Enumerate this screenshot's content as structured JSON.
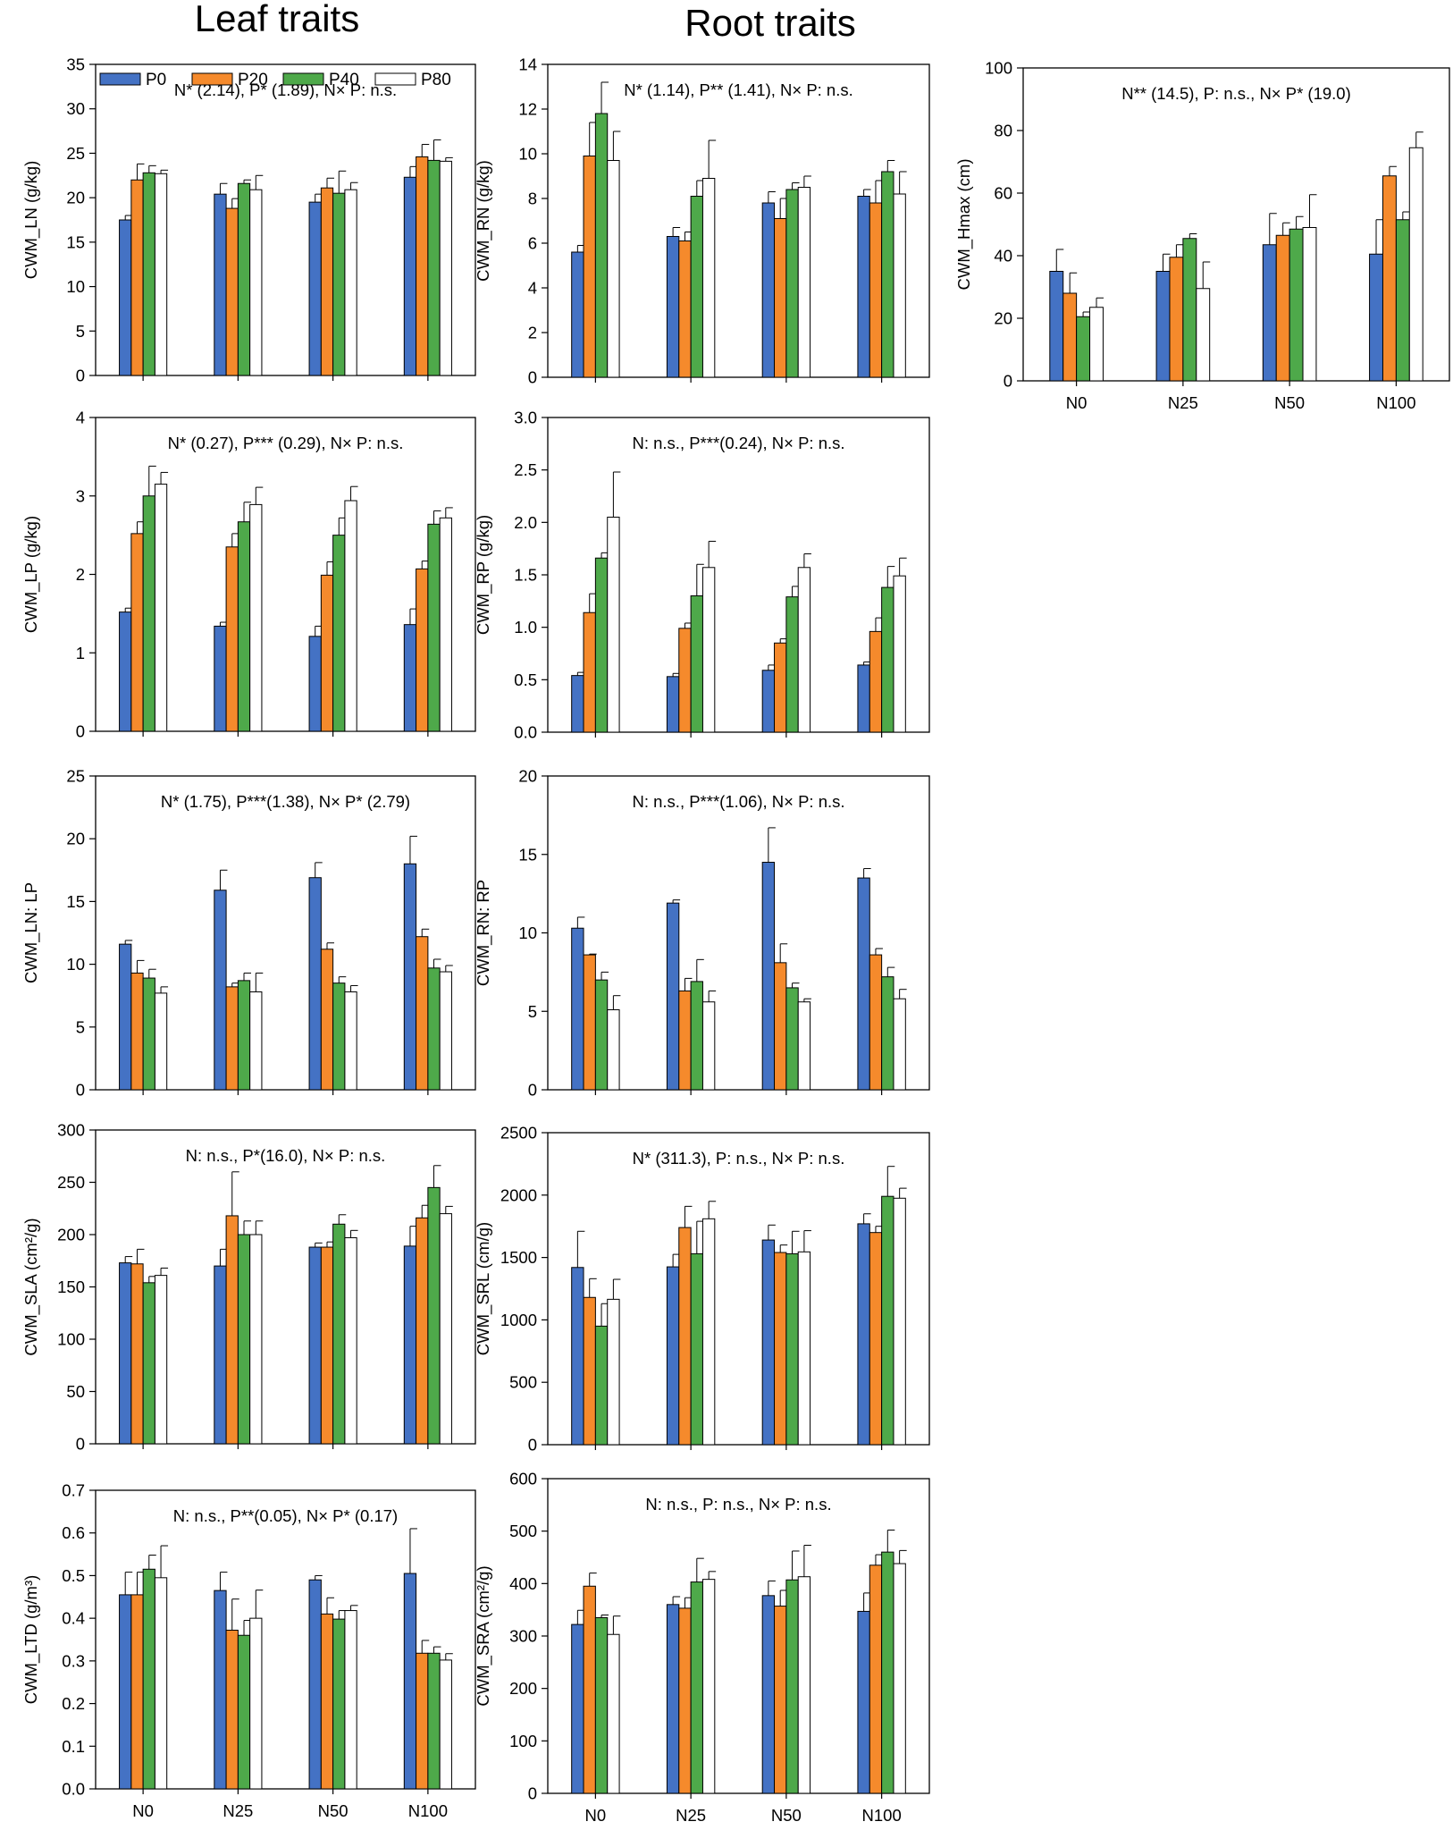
{
  "titles": {
    "leaf": "Leaf traits",
    "root": "Root traits"
  },
  "colors": {
    "P0": "#4472c4",
    "P20": "#f58a2c",
    "P40": "#4ea94a",
    "P80": "#ffffff",
    "edge": "#000000"
  },
  "legend": [
    "P0",
    "P20",
    "P40",
    "P80"
  ],
  "chart_data": [
    {
      "id": "ln",
      "type": "bar",
      "ylabel": "CWM_LN (g/kg)",
      "annotation": "N* (2.14), P* (1.89), N× P: n.s.",
      "categories": [
        "N0",
        "N25",
        "N50",
        "N100"
      ],
      "ylim": [
        0,
        35
      ],
      "yticks": [
        "0",
        "5",
        "10",
        "15",
        "20",
        "25",
        "30",
        "35"
      ],
      "series": [
        {
          "name": "P0",
          "values": [
            17.5,
            20.4,
            19.5,
            22.3
          ],
          "errors": [
            0.5,
            1.2,
            0.9,
            1.2
          ]
        },
        {
          "name": "P20",
          "values": [
            22.0,
            18.8,
            21.1,
            24.6
          ],
          "errors": [
            1.8,
            1.1,
            1.1,
            1.4
          ]
        },
        {
          "name": "P40",
          "values": [
            22.8,
            21.6,
            20.5,
            24.2
          ],
          "errors": [
            0.8,
            0.4,
            2.5,
            2.3
          ]
        },
        {
          "name": "P80",
          "values": [
            22.7,
            20.9,
            20.9,
            24.1
          ],
          "errors": [
            0.4,
            1.6,
            0.8,
            0.4
          ]
        }
      ]
    },
    {
      "id": "rn",
      "type": "bar",
      "ylabel": "CWM_RN (g/kg)",
      "annotation": "N* (1.14), P** (1.41), N× P: n.s.",
      "categories": [
        "N0",
        "N25",
        "N50",
        "N100"
      ],
      "ylim": [
        0,
        14
      ],
      "yticks": [
        "0",
        "2",
        "4",
        "6",
        "8",
        "10",
        "12",
        "14"
      ],
      "series": [
        {
          "name": "P0",
          "values": [
            5.6,
            6.3,
            7.8,
            8.1
          ],
          "errors": [
            0.3,
            0.4,
            0.5,
            0.3
          ]
        },
        {
          "name": "P20",
          "values": [
            9.9,
            6.1,
            7.1,
            7.8
          ],
          "errors": [
            1.5,
            0.4,
            0.9,
            1.0
          ]
        },
        {
          "name": "P40",
          "values": [
            11.8,
            8.1,
            8.4,
            9.2
          ],
          "errors": [
            1.4,
            0.7,
            0.3,
            0.5
          ]
        },
        {
          "name": "P80",
          "values": [
            9.7,
            8.9,
            8.5,
            8.2
          ],
          "errors": [
            1.3,
            1.7,
            0.5,
            1.0
          ]
        }
      ]
    },
    {
      "id": "hmax",
      "type": "bar",
      "ylabel": "CWM_Hmax (cm)",
      "annotation": "N** (14.5), P: n.s., N× P* (19.0)",
      "categories": [
        "N0",
        "N25",
        "N50",
        "N100"
      ],
      "ylim": [
        0,
        100
      ],
      "yticks": [
        "0",
        "20",
        "40",
        "60",
        "80",
        "100"
      ],
      "series": [
        {
          "name": "P0",
          "values": [
            35,
            35,
            43.5,
            40.5
          ],
          "errors": [
            7,
            5.5,
            10,
            11
          ]
        },
        {
          "name": "P20",
          "values": [
            28,
            39.5,
            46.5,
            65.5
          ],
          "errors": [
            6.5,
            4,
            4,
            3
          ]
        },
        {
          "name": "P40",
          "values": [
            20.5,
            45.5,
            48.5,
            51.5
          ],
          "errors": [
            1.5,
            1.5,
            4,
            2.5
          ]
        },
        {
          "name": "P80",
          "values": [
            23.5,
            29.5,
            49,
            74.5
          ],
          "errors": [
            3,
            8.5,
            10.5,
            5
          ]
        }
      ]
    },
    {
      "id": "lp",
      "type": "bar",
      "ylabel": "CWM_LP (g/kg)",
      "annotation": "N* (0.27), P*** (0.29), N× P: n.s.",
      "categories": [
        "N0",
        "N25",
        "N50",
        "N100"
      ],
      "ylim": [
        0,
        4
      ],
      "yticks": [
        "0",
        "1",
        "2",
        "3",
        "4"
      ],
      "series": [
        {
          "name": "P0",
          "values": [
            1.52,
            1.34,
            1.21,
            1.36
          ],
          "errors": [
            0.05,
            0.05,
            0.13,
            0.2
          ]
        },
        {
          "name": "P20",
          "values": [
            2.52,
            2.35,
            1.99,
            2.07
          ],
          "errors": [
            0.15,
            0.17,
            0.17,
            0.1
          ]
        },
        {
          "name": "P40",
          "values": [
            3.0,
            2.67,
            2.5,
            2.64
          ],
          "errors": [
            0.38,
            0.25,
            0.22,
            0.17
          ]
        },
        {
          "name": "P80",
          "values": [
            3.15,
            2.89,
            2.94,
            2.72
          ],
          "errors": [
            0.15,
            0.22,
            0.18,
            0.13
          ]
        }
      ]
    },
    {
      "id": "rp",
      "type": "bar",
      "ylabel": "CWM_RP (g/kg)",
      "annotation": "N: n.s., P***(0.24), N× P: n.s.",
      "categories": [
        "N0",
        "N25",
        "N50",
        "N100"
      ],
      "ylim": [
        0,
        3
      ],
      "yticks": [
        "0.0",
        "0.5",
        "1.0",
        "1.5",
        "2.0",
        "2.5",
        "3.0"
      ],
      "series": [
        {
          "name": "P0",
          "values": [
            0.54,
            0.53,
            0.59,
            0.64
          ],
          "errors": [
            0.03,
            0.03,
            0.05,
            0.03
          ]
        },
        {
          "name": "P20",
          "values": [
            1.14,
            0.99,
            0.85,
            0.96
          ],
          "errors": [
            0.18,
            0.05,
            0.04,
            0.13
          ]
        },
        {
          "name": "P40",
          "values": [
            1.66,
            1.3,
            1.29,
            1.38
          ],
          "errors": [
            0.05,
            0.3,
            0.1,
            0.2
          ]
        },
        {
          "name": "P80",
          "values": [
            2.05,
            1.57,
            1.57,
            1.49
          ],
          "errors": [
            0.43,
            0.25,
            0.13,
            0.17
          ]
        }
      ]
    },
    {
      "id": "lnlp",
      "type": "bar",
      "ylabel": "CWM_LN: LP",
      "annotation": "N* (1.75), P***(1.38), N× P* (2.79)",
      "categories": [
        "N0",
        "N25",
        "N50",
        "N100"
      ],
      "ylim": [
        0,
        25
      ],
      "yticks": [
        "0",
        "5",
        "10",
        "15",
        "20",
        "25"
      ],
      "series": [
        {
          "name": "P0",
          "values": [
            11.6,
            15.9,
            16.9,
            18.0
          ],
          "errors": [
            0.3,
            1.6,
            1.2,
            2.2
          ]
        },
        {
          "name": "P20",
          "values": [
            9.3,
            8.2,
            11.2,
            12.2
          ],
          "errors": [
            1.0,
            0.3,
            0.5,
            0.6
          ]
        },
        {
          "name": "P40",
          "values": [
            8.9,
            8.7,
            8.5,
            9.7
          ],
          "errors": [
            0.7,
            0.6,
            0.5,
            0.7
          ]
        },
        {
          "name": "P80",
          "values": [
            7.7,
            7.8,
            7.8,
            9.4
          ],
          "errors": [
            0.5,
            1.5,
            0.5,
            0.5
          ]
        }
      ]
    },
    {
      "id": "rnrp",
      "type": "bar",
      "ylabel": "CWM_RN: RP",
      "annotation": "N: n.s., P***(1.06), N× P: n.s.",
      "categories": [
        "N0",
        "N25",
        "N50",
        "N100"
      ],
      "ylim": [
        0,
        20
      ],
      "yticks": [
        "0",
        "5",
        "10",
        "15",
        "20"
      ],
      "series": [
        {
          "name": "P0",
          "values": [
            10.3,
            11.9,
            14.5,
            13.5
          ],
          "errors": [
            0.7,
            0.2,
            2.2,
            0.6
          ]
        },
        {
          "name": "P20",
          "values": [
            8.6,
            6.3,
            8.1,
            8.6
          ],
          "errors": [
            0.05,
            0.8,
            1.2,
            0.4
          ]
        },
        {
          "name": "P40",
          "values": [
            7.0,
            6.9,
            6.5,
            7.2
          ],
          "errors": [
            0.5,
            1.4,
            0.3,
            0.6
          ]
        },
        {
          "name": "P80",
          "values": [
            5.1,
            5.6,
            5.6,
            5.8
          ],
          "errors": [
            0.9,
            0.7,
            0.2,
            0.6
          ]
        }
      ]
    },
    {
      "id": "sla",
      "type": "bar",
      "ylabel": "CWM_SLA (cm²/g)",
      "annotation": "N: n.s., P*(16.0), N× P: n.s.",
      "categories": [
        "N0",
        "N25",
        "N50",
        "N100"
      ],
      "ylim": [
        0,
        300
      ],
      "yticks": [
        "0",
        "50",
        "100",
        "150",
        "200",
        "250",
        "300"
      ],
      "series": [
        {
          "name": "P0",
          "values": [
            173,
            170,
            188,
            189
          ],
          "errors": [
            6,
            16,
            4,
            19
          ]
        },
        {
          "name": "P20",
          "values": [
            172,
            218,
            188,
            216
          ],
          "errors": [
            14,
            42,
            5,
            12
          ]
        },
        {
          "name": "P40",
          "values": [
            154,
            200,
            210,
            245
          ],
          "errors": [
            6,
            13,
            9,
            21
          ]
        },
        {
          "name": "P80",
          "values": [
            161,
            200,
            197,
            220
          ],
          "errors": [
            7,
            13,
            7,
            7
          ]
        }
      ]
    },
    {
      "id": "srl",
      "type": "bar",
      "ylabel": "CWM_SRL (cm/g)",
      "annotation": "N* (311.3), P: n.s., N× P: n.s.",
      "categories": [
        "N0",
        "N25",
        "N50",
        "N100"
      ],
      "ylim": [
        0,
        2500
      ],
      "yticks": [
        "0",
        "500",
        "1000",
        "1500",
        "2000",
        "2500"
      ],
      "series": [
        {
          "name": "P0",
          "values": [
            1420,
            1425,
            1640,
            1770
          ],
          "errors": [
            290,
            100,
            120,
            80
          ]
        },
        {
          "name": "P20",
          "values": [
            1180,
            1740,
            1540,
            1700
          ],
          "errors": [
            150,
            170,
            60,
            50
          ]
        },
        {
          "name": "P40",
          "values": [
            950,
            1530,
            1530,
            1990
          ],
          "errors": [
            180,
            260,
            180,
            240
          ]
        },
        {
          "name": "P80",
          "values": [
            1165,
            1810,
            1545,
            1975
          ],
          "errors": [
            160,
            140,
            170,
            80
          ]
        }
      ]
    },
    {
      "id": "ltd",
      "type": "bar",
      "ylabel": "CWM_LTD (g/m³)",
      "annotation": "N: n.s., P**(0.05), N× P* (0.17)",
      "categories": [
        "N0",
        "N25",
        "N50",
        "N100"
      ],
      "ylim": [
        0,
        0.7
      ],
      "yticks": [
        "0.0",
        "0.1",
        "0.2",
        "0.3",
        "0.4",
        "0.5",
        "0.6",
        "0.7"
      ],
      "series": [
        {
          "name": "P0",
          "values": [
            0.455,
            0.465,
            0.49,
            0.505
          ],
          "errors": [
            0.053,
            0.043,
            0.01,
            0.105
          ]
        },
        {
          "name": "P20",
          "values": [
            0.455,
            0.372,
            0.41,
            0.318
          ],
          "errors": [
            0.053,
            0.073,
            0.038,
            0.03
          ]
        },
        {
          "name": "P40",
          "values": [
            0.515,
            0.36,
            0.398,
            0.318
          ],
          "errors": [
            0.033,
            0.035,
            0.02,
            0.015
          ]
        },
        {
          "name": "P80",
          "values": [
            0.495,
            0.4,
            0.418,
            0.302
          ],
          "errors": [
            0.075,
            0.066,
            0.012,
            0.015
          ]
        }
      ]
    },
    {
      "id": "sra",
      "type": "bar",
      "ylabel": "CWM_SRA (cm²/g)",
      "annotation": "N: n.s., P: n.s., N× P: n.s.",
      "categories": [
        "N0",
        "N25",
        "N50",
        "N100"
      ],
      "ylim": [
        0,
        600
      ],
      "yticks": [
        "0",
        "100",
        "200",
        "300",
        "400",
        "500",
        "600"
      ],
      "series": [
        {
          "name": "P0",
          "values": [
            322,
            360,
            377,
            347
          ],
          "errors": [
            27,
            15,
            28,
            35
          ]
        },
        {
          "name": "P20",
          "values": [
            395,
            353,
            357,
            435
          ],
          "errors": [
            25,
            20,
            30,
            20
          ]
        },
        {
          "name": "P40",
          "values": [
            335,
            403,
            407,
            460
          ],
          "errors": [
            5,
            45,
            55,
            42
          ]
        },
        {
          "name": "P80",
          "values": [
            303,
            408,
            413,
            438
          ],
          "errors": [
            35,
            15,
            60,
            25
          ]
        }
      ]
    }
  ]
}
